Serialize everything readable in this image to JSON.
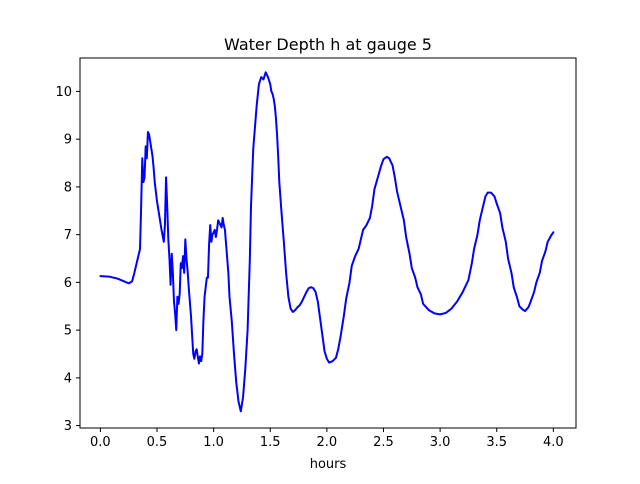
{
  "chart_data": {
    "type": "line",
    "title": "Water Depth h at gauge 5",
    "xlabel": "hours",
    "ylabel": "",
    "xlim": [
      -0.18,
      4.2
    ],
    "ylim": [
      2.95,
      10.7
    ],
    "xticks": [
      0.0,
      0.5,
      1.0,
      1.5,
      2.0,
      2.5,
      3.0,
      3.5,
      4.0
    ],
    "xtick_labels": [
      "0.0",
      "0.5",
      "1.0",
      "1.5",
      "2.0",
      "2.5",
      "3.0",
      "3.5",
      "4.0"
    ],
    "yticks": [
      3,
      4,
      5,
      6,
      7,
      8,
      9,
      10
    ],
    "ytick_labels": [
      "3",
      "4",
      "5",
      "6",
      "7",
      "8",
      "9",
      "10"
    ],
    "grid": false,
    "legend": "none",
    "series": [
      {
        "color": "#0000ff",
        "x": [
          0.0,
          0.08,
          0.15,
          0.2,
          0.25,
          0.28,
          0.3,
          0.33,
          0.35,
          0.36,
          0.37,
          0.38,
          0.39,
          0.4,
          0.41,
          0.42,
          0.43,
          0.44,
          0.45,
          0.46,
          0.47,
          0.48,
          0.5,
          0.52,
          0.54,
          0.56,
          0.57,
          0.58,
          0.59,
          0.6,
          0.61,
          0.62,
          0.63,
          0.64,
          0.65,
          0.66,
          0.67,
          0.68,
          0.69,
          0.7,
          0.71,
          0.72,
          0.73,
          0.74,
          0.75,
          0.76,
          0.77,
          0.78,
          0.79,
          0.8,
          0.81,
          0.82,
          0.83,
          0.84,
          0.85,
          0.86,
          0.87,
          0.88,
          0.89,
          0.9,
          0.91,
          0.92,
          0.93,
          0.94,
          0.95,
          0.96,
          0.97,
          0.98,
          0.99,
          1.0,
          1.01,
          1.02,
          1.03,
          1.04,
          1.05,
          1.06,
          1.07,
          1.08,
          1.09,
          1.1,
          1.11,
          1.12,
          1.13,
          1.14,
          1.16,
          1.18,
          1.2,
          1.22,
          1.24,
          1.26,
          1.28,
          1.3,
          1.32,
          1.33,
          1.35,
          1.38,
          1.4,
          1.42,
          1.44,
          1.46,
          1.48,
          1.5,
          1.51,
          1.52,
          1.53,
          1.54,
          1.55,
          1.56,
          1.57,
          1.58,
          1.6,
          1.62,
          1.64,
          1.66,
          1.68,
          1.7,
          1.72,
          1.74,
          1.76,
          1.78,
          1.8,
          1.82,
          1.84,
          1.86,
          1.88,
          1.9,
          1.92,
          1.94,
          1.96,
          1.98,
          2.0,
          2.02,
          2.05,
          2.08,
          2.1,
          2.12,
          2.15,
          2.17,
          2.2,
          2.22,
          2.25,
          2.28,
          2.3,
          2.32,
          2.35,
          2.38,
          2.4,
          2.42,
          2.45,
          2.48,
          2.5,
          2.53,
          2.55,
          2.58,
          2.6,
          2.62,
          2.65,
          2.68,
          2.7,
          2.73,
          2.75,
          2.78,
          2.8,
          2.83,
          2.85,
          2.9,
          2.95,
          3.0,
          3.05,
          3.1,
          3.15,
          3.2,
          3.25,
          3.28,
          3.3,
          3.33,
          3.35,
          3.38,
          3.4,
          3.42,
          3.45,
          3.48,
          3.5,
          3.53,
          3.55,
          3.58,
          3.6,
          3.63,
          3.65,
          3.68,
          3.7,
          3.73,
          3.75,
          3.78,
          3.8,
          3.83,
          3.85,
          3.88,
          3.9,
          3.93,
          3.95,
          3.98,
          4.0
        ],
        "y": [
          6.13,
          6.12,
          6.08,
          6.03,
          5.98,
          6.02,
          6.2,
          6.5,
          6.7,
          7.6,
          8.6,
          8.1,
          8.2,
          8.85,
          8.6,
          9.15,
          9.1,
          8.95,
          8.8,
          8.65,
          8.4,
          8.1,
          7.7,
          7.4,
          7.1,
          6.85,
          7.2,
          8.2,
          7.6,
          6.9,
          6.5,
          5.95,
          6.6,
          6.2,
          5.6,
          5.35,
          5.0,
          5.7,
          5.55,
          5.75,
          6.4,
          6.3,
          6.55,
          6.2,
          6.9,
          6.5,
          6.25,
          5.9,
          5.6,
          5.3,
          4.9,
          4.5,
          4.4,
          4.55,
          4.6,
          4.45,
          4.3,
          4.45,
          4.35,
          4.5,
          5.2,
          5.7,
          5.9,
          6.1,
          6.1,
          6.8,
          7.2,
          6.85,
          7.0,
          7.05,
          7.1,
          6.95,
          7.1,
          7.3,
          7.25,
          7.2,
          7.15,
          7.35,
          7.2,
          7.1,
          6.8,
          6.5,
          6.2,
          5.7,
          5.2,
          4.5,
          3.9,
          3.5,
          3.3,
          3.6,
          4.2,
          5.0,
          6.5,
          7.6,
          8.8,
          9.7,
          10.15,
          10.3,
          10.25,
          10.4,
          10.3,
          10.15,
          10.0,
          9.95,
          9.85,
          9.7,
          9.45,
          9.1,
          8.65,
          8.1,
          7.45,
          6.85,
          6.2,
          5.7,
          5.45,
          5.38,
          5.42,
          5.48,
          5.52,
          5.6,
          5.7,
          5.8,
          5.88,
          5.9,
          5.88,
          5.8,
          5.6,
          5.25,
          4.9,
          4.55,
          4.4,
          4.32,
          4.35,
          4.42,
          4.6,
          4.85,
          5.3,
          5.65,
          6.0,
          6.35,
          6.55,
          6.7,
          6.9,
          7.1,
          7.2,
          7.35,
          7.6,
          7.95,
          8.2,
          8.45,
          8.58,
          8.63,
          8.6,
          8.45,
          8.2,
          7.9,
          7.6,
          7.3,
          6.95,
          6.6,
          6.3,
          6.1,
          5.9,
          5.75,
          5.55,
          5.42,
          5.35,
          5.33,
          5.36,
          5.45,
          5.6,
          5.8,
          6.05,
          6.4,
          6.7,
          7.0,
          7.3,
          7.6,
          7.8,
          7.88,
          7.88,
          7.8,
          7.65,
          7.45,
          7.15,
          6.85,
          6.5,
          6.2,
          5.9,
          5.68,
          5.5,
          5.43,
          5.4,
          5.48,
          5.6,
          5.8,
          6.0,
          6.2,
          6.45,
          6.65,
          6.85,
          6.98,
          7.05
        ]
      }
    ]
  }
}
